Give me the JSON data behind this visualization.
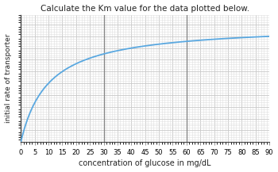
{
  "title": "Calculate the Km value for the data plotted below.",
  "xlabel": "concentration of glucose in mg/dL",
  "ylabel": "initial rate of transporter",
  "xlim": [
    0,
    90
  ],
  "ylim": [
    0,
    1.08
  ],
  "xticks": [
    0,
    5,
    10,
    15,
    20,
    25,
    30,
    35,
    40,
    45,
    50,
    55,
    60,
    65,
    70,
    75,
    80,
    85,
    90
  ],
  "Vmax": 1.0,
  "Km": 10,
  "curve_color": "#5aa8e0",
  "grid_major_color": "#c8c8c8",
  "grid_minor_color": "#e0e0e0",
  "spine_color": "#444444",
  "title_fontsize": 7.5,
  "label_fontsize": 7.0,
  "tick_fontsize": 6.0,
  "ylabel_fontsize": 6.5,
  "background_color": "#ffffff",
  "plot_bg_color": "#ffffff",
  "major_linewidth": 0.6,
  "minor_linewidth": 0.4,
  "curve_linewidth": 1.3
}
